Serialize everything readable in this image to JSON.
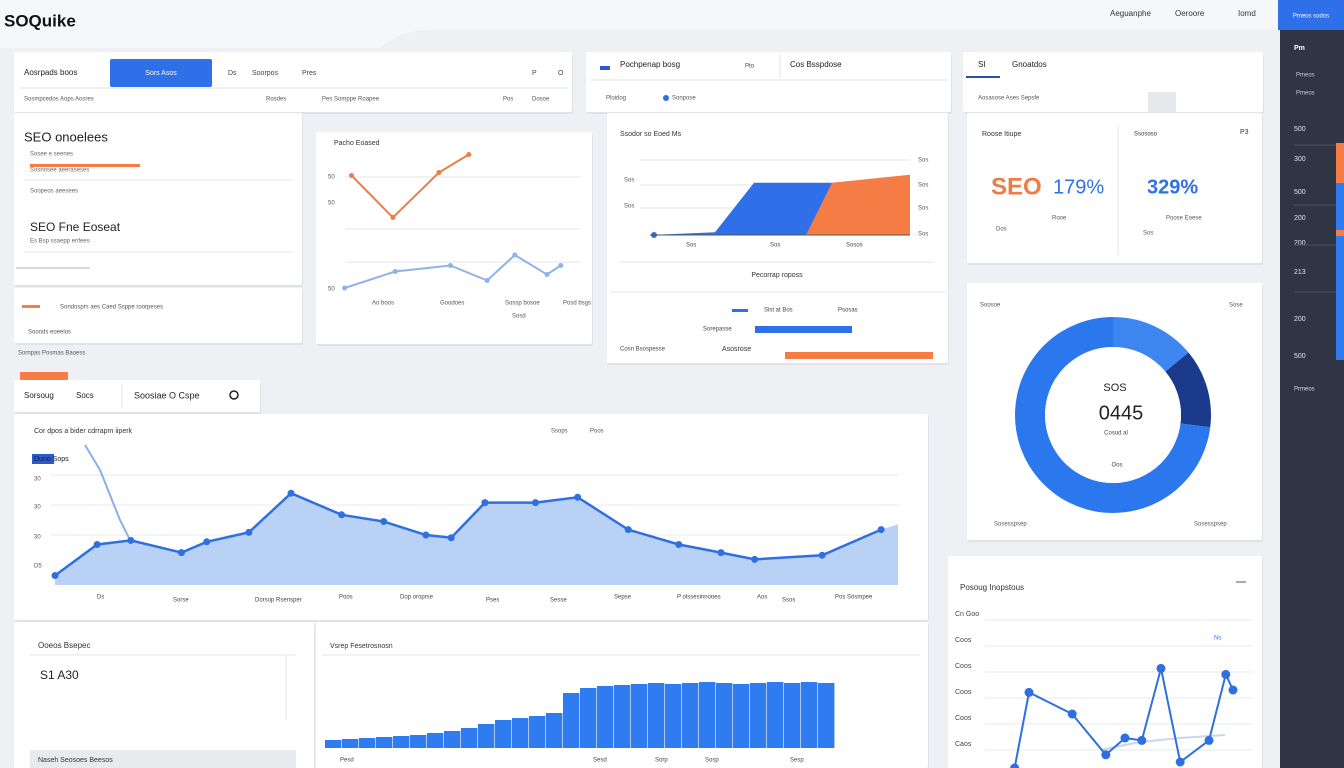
{
  "header": {
    "logo": "SOQuike",
    "nav": [
      "Aeguanphe",
      "Oeroore",
      "Iomd"
    ],
    "button": "Pmeos sodos"
  },
  "sidebar": {
    "title": "Pm",
    "items": [
      "Pmeos",
      "Pmeos"
    ],
    "values": [
      "500",
      "300",
      "500",
      "200",
      "200",
      "213",
      "200",
      "500"
    ],
    "footer": "Prmeos"
  },
  "toolbar": {
    "title": "Aosrpads boos",
    "button": "Sors Asos",
    "links": [
      "Ds",
      "Soorpos",
      "Pres",
      "P",
      "O"
    ],
    "sub": [
      "Sosmpcedos Aops Aosres",
      "Rosdes",
      "Pes Somppe Roapee",
      "Pos",
      "Dosoe"
    ],
    "mid_title": "Pochpenap bosg",
    "mid_link": "Pto",
    "mid2_title": "Cos Bsspdose",
    "mid_sub": [
      "Ploidog",
      "Sonpose"
    ],
    "right_code": "SI",
    "right_title": "Gnoatdos",
    "right_sub": "Aosasose Ases Sepsfe"
  },
  "card_seo": {
    "title": "SEO onoelees",
    "lines": [
      "Sosee e seenes",
      "Sosnosee aeeraseses",
      "Soopeos aeesees"
    ],
    "subtitle": "SEO Fne Eoseat",
    "sub_line": "Es Bsp ssaepp enfees",
    "footer": [
      "Sondosprs aes Caed Ssppe roorpeses",
      "Sooods eoeelos",
      "Sornpas Posmas Baoess"
    ]
  },
  "card_trend": {
    "ylabels": [
      "50",
      "50",
      "50"
    ],
    "xlabels": [
      "Ao boos",
      "Goodoes",
      "Sossp bosoe",
      "Posd bsgs",
      "Sosd"
    ]
  },
  "card_area": {
    "rlabels": [
      "Sos",
      "Sos",
      "Sos",
      "Sos"
    ],
    "llabels": [
      "Sos",
      "Sos"
    ],
    "xlabels": [
      "Sos",
      "Sos",
      "Sosos"
    ],
    "caption": "Pecorrap roposs",
    "rows": [
      "Sist at Bos",
      "Psosas",
      "Sorepasse"
    ],
    "footer": [
      "Cosn Bsospesse",
      "Asosrose"
    ]
  },
  "stats": {
    "title": "Roose Itiupe",
    "code": "P3",
    "seo": "SEO",
    "seo_value": "179%",
    "seo_caption": "Rooe",
    "seo_foot": "Dos",
    "title2": "Ssososo",
    "caption2": "Poose Eoese",
    "foot2": "Sos",
    "value2": "329%"
  },
  "donut_card": {
    "left": "Soosoe",
    "right": "Sose",
    "label": "SOS",
    "value": "0445",
    "caption": "Cosud al",
    "sub": "Oos",
    "footer": [
      "Sosesspsep",
      "Sosesspsep"
    ]
  },
  "tabs": [
    "Sorsoug",
    "Socs",
    "Soosiae O Cspe"
  ],
  "main_labels": {
    "right": [
      "Ssops",
      "Poos"
    ],
    "legend": "Duno Sops",
    "ylabels": [
      "30",
      "30",
      "30",
      "D5"
    ],
    "xlabels": [
      "Ds",
      "Sorse",
      "Dorsop Rsensper",
      "Poos",
      "Dop oroprse",
      "Pses",
      "Sesse",
      "Sepse",
      "P olssesinnooes",
      "Aos",
      "Ssos",
      "Pos Sosmpee"
    ]
  },
  "bottom_left": {
    "title": "Ooeos Bsepec",
    "value": "S1 A30",
    "footer": "Naseh Seosoes Beesos"
  },
  "bottom_mid": {
    "xlabels": [
      "Pesd",
      "Sesd",
      "Sorp",
      "Sosp",
      "Sesp"
    ]
  },
  "bottom_right": {
    "ylabels": [
      "Cn Goo",
      "Coos",
      "Coos",
      "Coos",
      "Coos",
      "Caos"
    ],
    "tag": "Ns"
  },
  "chart_data": [
    {
      "type": "line",
      "title": "Pacho Eoased",
      "xlim": [
        0,
        100
      ],
      "ylim": [
        0,
        100
      ],
      "series": [
        {
          "color": "#f07c45",
          "x": [
            5,
            23,
            43,
            56
          ],
          "values": [
            83,
            55,
            85,
            97
          ]
        },
        {
          "color": "#8fb3e8",
          "x": [
            2,
            24,
            48,
            64,
            76,
            90,
            96
          ],
          "values": [
            8,
            19,
            23,
            13,
            30,
            17,
            23
          ]
        }
      ]
    },
    {
      "type": "area",
      "title": "Cor dpos a bider cdrrapm iiperk",
      "xlim": [
        0,
        100
      ],
      "ylim": [
        0,
        100
      ],
      "color": "#2f6fe0",
      "x": [
        0,
        5,
        9,
        15,
        18,
        23,
        28,
        34,
        39,
        44,
        47,
        51,
        57,
        62,
        68,
        74,
        79,
        83,
        91,
        98
      ],
      "values": [
        7,
        30,
        33,
        24,
        32,
        39,
        68,
        52,
        47,
        37,
        35,
        61,
        61,
        65,
        41,
        30,
        24,
        19,
        22,
        41
      ]
    },
    {
      "type": "area",
      "title": "Ssodor so Eoed Ms",
      "xlim": [
        0,
        100
      ],
      "ylim": [
        0,
        100
      ],
      "series": [
        {
          "color": "#2f6fe8",
          "x": [
            0,
            25,
            40,
            70
          ],
          "values": [
            0,
            3,
            58,
            58
          ]
        },
        {
          "color": "#f57c45",
          "x": [
            60,
            70,
            100
          ],
          "values": [
            0,
            58,
            67
          ]
        }
      ]
    },
    {
      "type": "pie",
      "values": [
        14,
        13,
        73
      ],
      "colors": [
        "#3d86f0",
        "#1b3a8c",
        "#2b78ee"
      ]
    },
    {
      "type": "bar",
      "title": "Vsrep Fesetrosnosn",
      "color": "#2f7cf0",
      "ylim": [
        0,
        100
      ],
      "values": [
        8,
        9,
        10,
        11,
        12,
        13,
        15,
        17,
        20,
        24,
        28,
        30,
        32,
        35,
        55,
        60,
        62,
        63,
        64,
        65,
        64,
        65,
        66,
        65,
        64,
        65,
        66,
        65,
        66,
        65
      ]
    },
    {
      "type": "line",
      "title": "Posoug Inopstous",
      "xlim": [
        0,
        100
      ],
      "ylim": [
        0,
        100
      ],
      "series": [
        {
          "color": "#2f6fe0",
          "x": [
            4,
            10,
            28,
            42,
            50,
            57,
            65,
            73,
            85,
            92,
            95
          ],
          "values": [
            0,
            63,
            45,
            11,
            25,
            23,
            83,
            5,
            23,
            78,
            65
          ]
        }
      ]
    }
  ]
}
